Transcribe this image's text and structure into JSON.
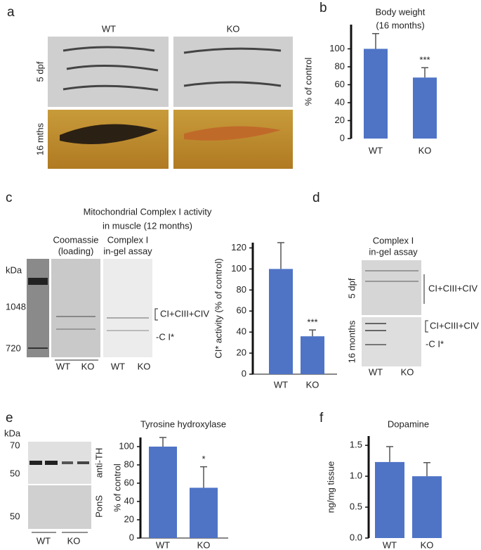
{
  "chart_data": [
    {
      "type": "bar",
      "panel": "b",
      "title": "Body weight",
      "subtitle": "(16 months)",
      "y_label": "% of control",
      "categories": [
        "WT",
        "KO"
      ],
      "values": [
        100,
        68
      ],
      "errors": [
        17,
        11
      ],
      "significance": [
        null,
        "***"
      ],
      "color": "#4f74c6",
      "ylim": [
        0,
        127
      ],
      "yticks": [
        0,
        20,
        40,
        60,
        80,
        100
      ]
    },
    {
      "type": "bar",
      "panel": "c",
      "y_label": "CI* activity (% of control)",
      "categories": [
        "WT",
        "KO"
      ],
      "values": [
        100,
        36
      ],
      "errors": [
        25,
        6
      ],
      "significance": [
        null,
        "***"
      ],
      "color": "#4f74c6",
      "ylim": [
        0,
        125
      ],
      "yticks": [
        0,
        20,
        40,
        60,
        80,
        100,
        120
      ]
    },
    {
      "type": "bar",
      "panel": "e",
      "title": "Tyrosine hydroxylase",
      "y_label": "% of control",
      "categories": [
        "WT",
        "KO"
      ],
      "values": [
        100,
        55
      ],
      "errors": [
        10,
        23
      ],
      "significance": [
        null,
        "*"
      ],
      "color": "#4f74c6",
      "ylim": [
        0,
        110
      ],
      "yticks": [
        0,
        20,
        40,
        60,
        80,
        100
      ]
    },
    {
      "type": "bar",
      "panel": "f",
      "title": "Dopamine",
      "y_label": "ng/mg tissue",
      "categories": [
        "WT",
        "KO"
      ],
      "values": [
        1.23,
        1.0
      ],
      "errors": [
        0.25,
        0.22
      ],
      "significance": [
        null,
        null
      ],
      "color": "#4f74c6",
      "ylim": [
        0,
        1.65
      ],
      "yticks": [
        {
          "value": 0,
          "label": "0.0"
        },
        0.5,
        {
          "value": 1,
          "label": "1.0"
        },
        1.5
      ]
    }
  ],
  "panels": {
    "a": {
      "letter": "a",
      "cols": [
        "WT",
        "KO"
      ],
      "rows": [
        "5 dpf",
        "16 mths"
      ]
    },
    "b": {
      "letter": "b"
    },
    "c": {
      "letter": "c",
      "title": [
        "Mitochondrial Complex I activity",
        "in muscle (12 months)"
      ],
      "kda": "kDa",
      "markers": [
        1048,
        720
      ],
      "lanes": [
        "Coomassie",
        "(loading)",
        "Complex I",
        "in-gel assay"
      ],
      "bands": [
        "CI+CIII+CIV",
        "-C I*"
      ],
      "groups": [
        "WT",
        "KO",
        "WT",
        "KO"
      ]
    },
    "d": {
      "letter": "d",
      "title": [
        "Complex I",
        "in-gel assay"
      ],
      "rows": [
        "5 dpf",
        "16 months"
      ],
      "bands": [
        "CI+CIII+CIV",
        "CI+CIII+CIV",
        "-C I*"
      ],
      "groups": [
        "WT",
        "KO"
      ]
    },
    "e": {
      "letter": "e",
      "kda": "kDa",
      "markers": [
        70,
        50,
        50
      ],
      "blots": [
        "anti-TH",
        "PonS"
      ],
      "groups": [
        "WT",
        "KO"
      ]
    },
    "f": {
      "letter": "f"
    }
  }
}
